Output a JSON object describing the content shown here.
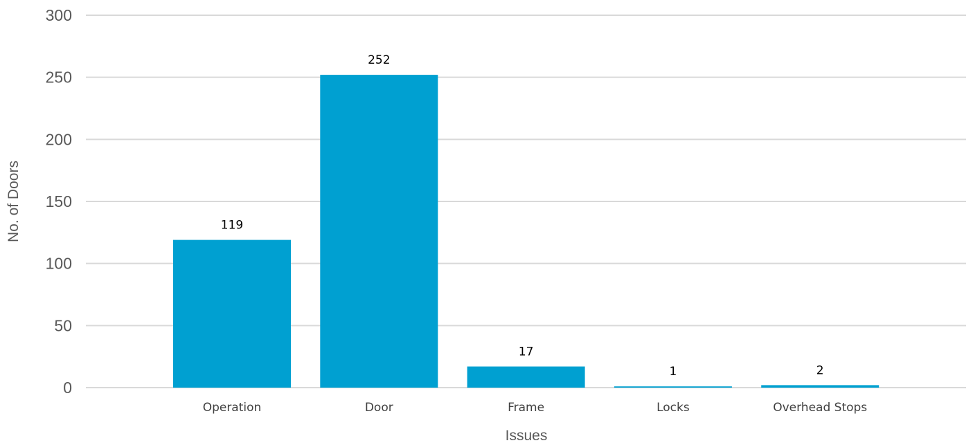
{
  "chart_data": {
    "type": "bar",
    "categories": [
      "Operation",
      "Door",
      "Frame",
      "Locks",
      "Overhead Stops"
    ],
    "values": [
      119,
      252,
      17,
      1,
      2
    ],
    "data_labels": [
      "119",
      "252",
      "17",
      "1",
      "2"
    ],
    "xlabel": "Issues",
    "ylabel": "No. of Doors",
    "ylim": [
      0,
      300
    ],
    "yticks": [
      0,
      50,
      100,
      150,
      200,
      250,
      300
    ],
    "grid": true,
    "legend": "none",
    "colors": {
      "bar": "#00A0D1",
      "grid": "#D9D9D9"
    }
  }
}
